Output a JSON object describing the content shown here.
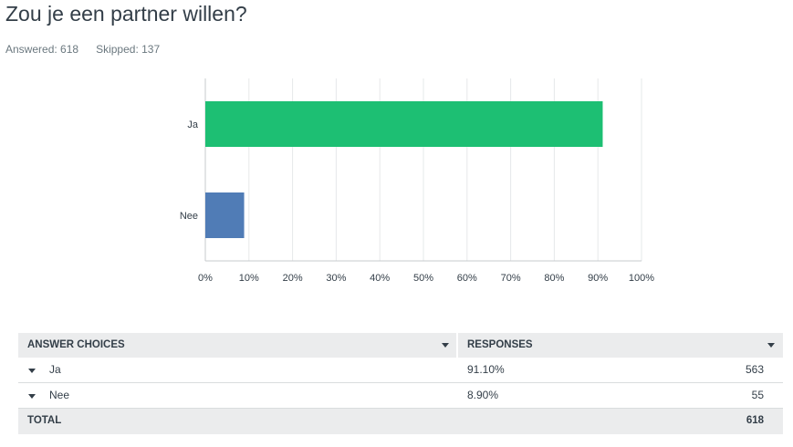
{
  "question": {
    "title": "Zou je een partner willen?",
    "answered_label": "Answered:",
    "answered": "618",
    "skipped_label": "Skipped:",
    "skipped": "137"
  },
  "chart_data": {
    "type": "bar",
    "orientation": "horizontal",
    "categories": [
      "Ja",
      "Nee"
    ],
    "values": [
      91.1,
      8.9
    ],
    "colors": [
      "#1dbf73",
      "#507cb6"
    ],
    "xlim": [
      0,
      100
    ],
    "xticks": [
      "0%",
      "10%",
      "20%",
      "30%",
      "40%",
      "50%",
      "60%",
      "70%",
      "80%",
      "90%",
      "100%"
    ],
    "grid": true
  },
  "table": {
    "headers": {
      "choice": "ANSWER CHOICES",
      "responses": "RESPONSES"
    },
    "rows": [
      {
        "label": "Ja",
        "percent": "91.10%",
        "count": "563"
      },
      {
        "label": "Nee",
        "percent": "8.90%",
        "count": "55"
      }
    ],
    "total": {
      "label": "TOTAL",
      "count": "618"
    }
  }
}
